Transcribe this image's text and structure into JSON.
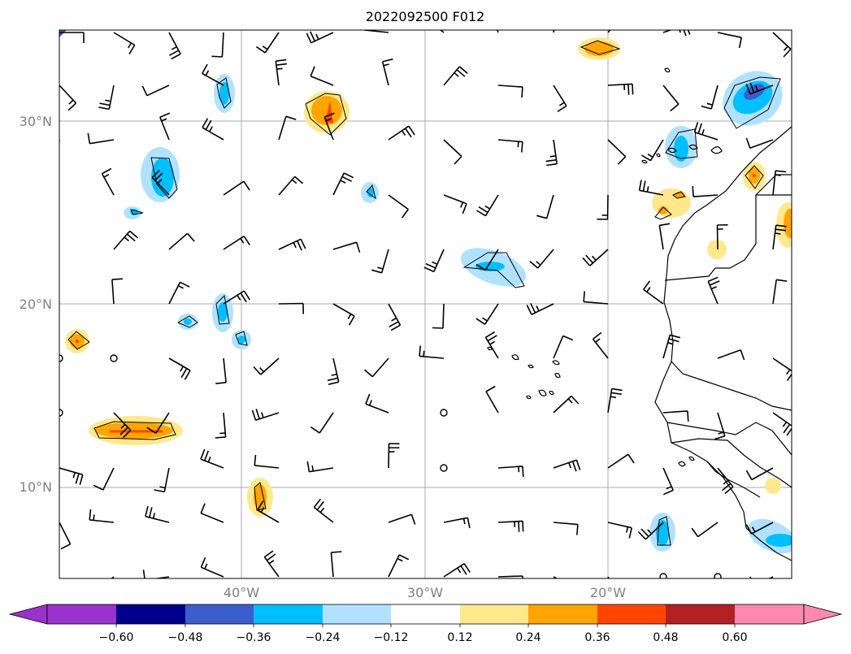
{
  "title": "2022092500 F012",
  "map": {
    "lat_labels": [
      "30°N",
      "20°N",
      "10°N"
    ],
    "lon_labels": [
      "40°W",
      "30°W",
      "20°W"
    ],
    "grid": true,
    "colors": {
      "grid": "#aaaaaa",
      "frame": "#000000",
      "coast": "#000000",
      "barb": "#000000",
      "axis_label": "#808080"
    }
  },
  "colorbar": {
    "ticks": [
      "−0.60",
      "−0.48",
      "−0.36",
      "−0.24",
      "−0.12",
      "0.12",
      "0.24",
      "0.36",
      "0.48",
      "0.60"
    ],
    "colors": [
      "#9933cc",
      "#00008b",
      "#3a5fcd",
      "#00bfff",
      "#b0e2ff",
      "#ffffff",
      "#ffe88c",
      "#ffa500",
      "#ff4500",
      "#b22222",
      "#ff88b0"
    ],
    "extend": "both"
  }
}
